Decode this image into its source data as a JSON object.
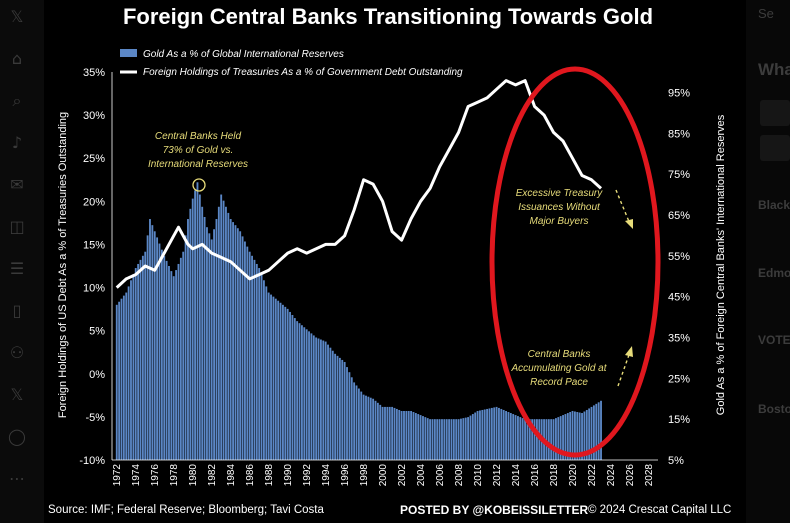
{
  "page": {
    "source": "Source: IMF; Federal Reserve; Bloomberg; Tavi Costa",
    "posted_by": "POSTED BY @KOBEISSILETTER",
    "copyright": "© 2024 Crescat Capital LLC"
  },
  "left_sidebar": {
    "icons": [
      "x-logo-icon",
      "home-icon",
      "search-icon",
      "bell-icon",
      "mail-icon",
      "grok-icon",
      "lists-icon",
      "bookmark-icon",
      "communities-icon",
      "x-premium-icon",
      "profile-icon",
      "more-icon"
    ]
  },
  "right_sidebar": {
    "search_fragment": "Se",
    "heading_fragment": "Wha",
    "items": [
      "Black",
      "Edmo",
      "VOTE",
      "Bosto"
    ]
  },
  "chart_data": {
    "type": "bar+line",
    "title": "Foreign Central Banks Transitioning Towards Gold",
    "legend": {
      "placement": "top-left",
      "entries": [
        {
          "label": "Gold As a % of Global International Reserves",
          "marker": "bar",
          "color": "#5b87c6"
        },
        {
          "label": "Foreign Holdings of Treasuries As a % of Government Debt Outstanding",
          "marker": "line",
          "color": "#ffffff"
        }
      ]
    },
    "left_axis": {
      "label": "Foreign Holdings of US Debt As a % of Treasuries Outstanding",
      "ticks": [
        "35%",
        "30%",
        "25%",
        "20%",
        "15%",
        "10%",
        "5%",
        "0%",
        "-5%",
        "-10%"
      ],
      "range": [
        -10,
        35
      ]
    },
    "right_axis": {
      "label": "Gold As a % of Foreign Central Banks' International Reserves",
      "ticks": [
        "95%",
        "85%",
        "75%",
        "65%",
        "55%",
        "45%",
        "35%",
        "25%",
        "15%",
        "5%"
      ],
      "range": [
        5,
        100
      ]
    },
    "x_axis": {
      "range": [
        1971.5,
        2029
      ],
      "ticks": [
        "1972",
        "1974",
        "1976",
        "1978",
        "1980",
        "1982",
        "1984",
        "1986",
        "1988",
        "1990",
        "1992",
        "1994",
        "1996",
        "1998",
        "2000",
        "2002",
        "2004",
        "2006",
        "2008",
        "2010",
        "2012",
        "2014",
        "2016",
        "2018",
        "2020",
        "2022",
        "2024",
        "2026",
        "2028"
      ]
    },
    "grid": false,
    "series_gold_pct_reserves": {
      "axis": "right",
      "points": [
        [
          1972,
          43
        ],
        [
          1973,
          46
        ],
        [
          1974,
          52
        ],
        [
          1975,
          56
        ],
        [
          1975.5,
          64
        ],
        [
          1976,
          61
        ],
        [
          1977,
          55
        ],
        [
          1978,
          50
        ],
        [
          1979,
          56
        ],
        [
          1979.5,
          64
        ],
        [
          1980,
          69
        ],
        [
          1980.5,
          73
        ],
        [
          1981,
          67
        ],
        [
          1981.5,
          62
        ],
        [
          1982,
          59
        ],
        [
          1982.5,
          64
        ],
        [
          1983,
          70
        ],
        [
          1983.5,
          67
        ],
        [
          1984,
          64
        ],
        [
          1985,
          61
        ],
        [
          1986,
          56
        ],
        [
          1987,
          52
        ],
        [
          1988,
          46
        ],
        [
          1989,
          44
        ],
        [
          1990,
          42
        ],
        [
          1991,
          39
        ],
        [
          1992,
          37
        ],
        [
          1993,
          35
        ],
        [
          1994,
          34
        ],
        [
          1995,
          31
        ],
        [
          1996,
          29
        ],
        [
          1997,
          24
        ],
        [
          1998,
          21
        ],
        [
          1999,
          20
        ],
        [
          2000,
          18
        ],
        [
          2001,
          18
        ],
        [
          2002,
          17
        ],
        [
          2003,
          17
        ],
        [
          2004,
          16
        ],
        [
          2005,
          15
        ],
        [
          2006,
          15
        ],
        [
          2007,
          15
        ],
        [
          2008,
          15
        ],
        [
          2009,
          15.5
        ],
        [
          2010,
          17
        ],
        [
          2011,
          17.5
        ],
        [
          2012,
          18
        ],
        [
          2013,
          17
        ],
        [
          2014,
          16
        ],
        [
          2015,
          15
        ],
        [
          2016,
          15
        ],
        [
          2017,
          15
        ],
        [
          2018,
          15
        ],
        [
          2019,
          16
        ],
        [
          2020,
          17
        ],
        [
          2021,
          16.5
        ],
        [
          2022,
          18
        ],
        [
          2023,
          19.5
        ]
      ]
    },
    "series_foreign_holdings_treasuries": {
      "axis": "left",
      "points": [
        [
          1972,
          10
        ],
        [
          1973,
          11
        ],
        [
          1974,
          11.5
        ],
        [
          1975,
          12.5
        ],
        [
          1976,
          12
        ],
        [
          1977,
          14
        ],
        [
          1978,
          16
        ],
        [
          1978.5,
          17
        ],
        [
          1979,
          16
        ],
        [
          1979.5,
          15
        ],
        [
          1980,
          14.5
        ],
        [
          1981,
          15
        ],
        [
          1982,
          14
        ],
        [
          1983,
          13.5
        ],
        [
          1984,
          13
        ],
        [
          1985,
          12
        ],
        [
          1986,
          11
        ],
        [
          1987,
          11.5
        ],
        [
          1988,
          12
        ],
        [
          1989,
          13
        ],
        [
          1990,
          14
        ],
        [
          1991,
          14.5
        ],
        [
          1992,
          14
        ],
        [
          1993,
          14.5
        ],
        [
          1994,
          15
        ],
        [
          1995,
          15
        ],
        [
          1996,
          16
        ],
        [
          1997,
          19
        ],
        [
          1998,
          22.5
        ],
        [
          1999,
          22
        ],
        [
          2000,
          20
        ],
        [
          2001,
          16.5
        ],
        [
          2002,
          15.5
        ],
        [
          2003,
          18
        ],
        [
          2004,
          20
        ],
        [
          2005,
          21.5
        ],
        [
          2006,
          24
        ],
        [
          2007,
          26
        ],
        [
          2008,
          28
        ],
        [
          2009,
          31
        ],
        [
          2010,
          31.5
        ],
        [
          2011,
          32
        ],
        [
          2012,
          33
        ],
        [
          2013,
          34
        ],
        [
          2014,
          33.5
        ],
        [
          2015,
          34
        ],
        [
          2016,
          31
        ],
        [
          2017,
          30
        ],
        [
          2018,
          28
        ],
        [
          2019,
          27
        ],
        [
          2020,
          25
        ],
        [
          2021,
          23
        ],
        [
          2022,
          22.5
        ],
        [
          2023,
          21.5
        ]
      ]
    },
    "annotations": [
      {
        "lines": [
          "Central Banks Held",
          "73% of Gold vs.",
          "International Reserves"
        ],
        "at_year": 1980.5
      },
      {
        "lines": [
          "Excessive Treasury",
          "Issuances Without",
          "Major Buyers"
        ]
      },
      {
        "lines": [
          "Central Banks",
          "Accumulating Gold at",
          "Record Pace"
        ]
      }
    ],
    "highlight": {
      "shape": "ellipse",
      "color": "#e0171e",
      "x_range": [
        2014,
        2026
      ]
    }
  }
}
